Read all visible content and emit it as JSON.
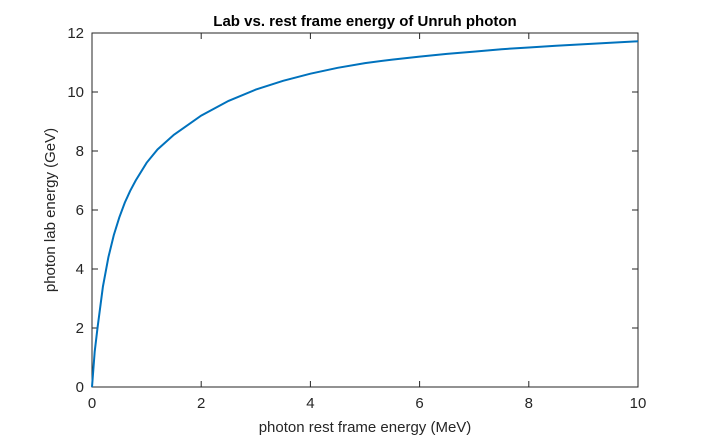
{
  "chart_data": {
    "type": "line",
    "title": "Lab vs. rest frame energy of Unruh photon",
    "xlabel": "photon rest frame  energy (MeV)",
    "ylabel": "photon lab energy (GeV)",
    "xlim": [
      0,
      10
    ],
    "ylim": [
      0,
      12
    ],
    "xticks": [
      "0",
      "2",
      "4",
      "6",
      "8",
      "10"
    ],
    "yticks": [
      "0",
      "2",
      "4",
      "6",
      "8",
      "10",
      "12"
    ],
    "grid": false,
    "legend": "none",
    "line_color": "#0072BD",
    "series": [
      {
        "x": [
          0,
          0.05,
          0.1,
          0.2,
          0.3,
          0.4,
          0.5,
          0.6,
          0.7,
          0.8,
          1.0,
          1.2,
          1.5,
          2.0,
          2.5,
          3.0,
          3.5,
          4.0,
          4.5,
          5.0,
          5.5,
          6.0,
          6.5,
          7.0,
          7.5,
          8.0,
          8.5,
          9.0,
          9.5,
          10.0
        ],
        "y": [
          0,
          1.2,
          2.0,
          3.4,
          4.4,
          5.15,
          5.75,
          6.25,
          6.65,
          7.0,
          7.6,
          8.05,
          8.55,
          9.2,
          9.7,
          10.08,
          10.38,
          10.62,
          10.82,
          10.98,
          11.1,
          11.2,
          11.29,
          11.37,
          11.45,
          11.51,
          11.57,
          11.62,
          11.67,
          11.72
        ]
      }
    ]
  }
}
